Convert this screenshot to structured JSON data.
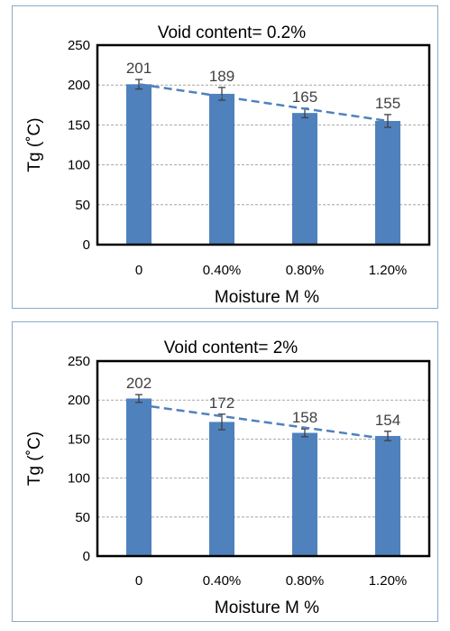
{
  "colors": {
    "bar": "#4f81bd",
    "trend": "#4f81bd",
    "error_bar": "#404040",
    "grid": "#a6a6a6",
    "panel_border": "#8aaac8",
    "text": "#000000",
    "data_label": "#404040"
  },
  "chart_data": [
    {
      "type": "bar",
      "title": "Void content= 0.2%",
      "xlabel": "Moisture M %",
      "ylabel": "Tg (˚C)",
      "categories": [
        "0",
        "0.40%",
        "0.80%",
        "1.20%"
      ],
      "values": [
        201,
        189,
        165,
        155
      ],
      "value_labels": [
        "201",
        "189",
        "165",
        "155"
      ],
      "error": [
        6,
        8,
        6,
        8
      ],
      "ylim": [
        0,
        250
      ],
      "yticks": [
        "0",
        "50",
        "100",
        "150",
        "200",
        "250"
      ],
      "grid": true,
      "trendline": {
        "style": "dashed",
        "x": [
          "0",
          "1.20%"
        ],
        "y": [
          201,
          155
        ]
      }
    },
    {
      "type": "bar",
      "title": "Void content= 2%",
      "xlabel": "Moisture M %",
      "ylabel": "Tg (˚C)",
      "categories": [
        "0",
        "0.40%",
        "0.80%",
        "1.20%"
      ],
      "values": [
        202,
        172,
        158,
        154
      ],
      "value_labels": [
        "202",
        "172",
        "158",
        "154"
      ],
      "error": [
        5,
        10,
        5,
        6
      ],
      "ylim": [
        0,
        250
      ],
      "yticks": [
        "0",
        "50",
        "100",
        "150",
        "200",
        "250"
      ],
      "grid": true,
      "trendline": {
        "style": "dashed",
        "x": [
          "0",
          "1.20%"
        ],
        "y": [
          194,
          150
        ]
      }
    }
  ]
}
